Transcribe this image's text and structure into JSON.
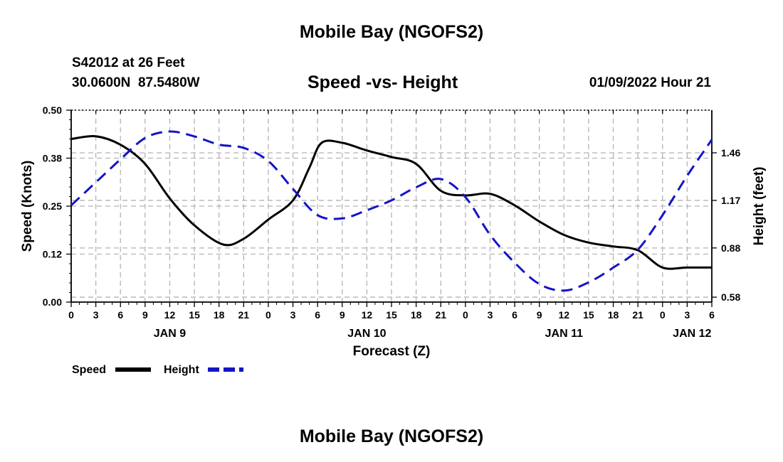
{
  "page": {
    "top_title": "Mobile Bay (NGOFS2)",
    "bottom_title": "Mobile Bay (NGOFS2)",
    "station": "S42012 at 26 Feet",
    "coords": "30.0600N  87.5480W",
    "subtitle": "Speed -vs- Height",
    "datetime": "01/09/2022 Hour 21"
  },
  "colors": {
    "speed": "#000000",
    "height": "#1414c8",
    "grid": "#b4b4b4"
  },
  "chart_data": {
    "type": "line",
    "xlabel": "Forecast (Z)",
    "ylabel_left": "Speed (Knots)",
    "ylabel_right": "Height (feet)",
    "xlim": [
      0,
      78
    ],
    "ylim_left": [
      0,
      0.5
    ],
    "ylim_right": [
      0.55,
      1.72
    ],
    "x_ticks": [
      0,
      3,
      6,
      9,
      12,
      15,
      18,
      21,
      24,
      27,
      30,
      33,
      36,
      39,
      42,
      45,
      48,
      51,
      54,
      57,
      60,
      63,
      66,
      69,
      72,
      75,
      78
    ],
    "x_tick_labels": [
      "0",
      "3",
      "6",
      "9",
      "12",
      "15",
      "18",
      "21",
      "0",
      "3",
      "6",
      "9",
      "12",
      "15",
      "18",
      "21",
      "0",
      "3",
      "6",
      "9",
      "12",
      "15",
      "18",
      "21",
      "0",
      "3",
      "6"
    ],
    "date_labels": [
      {
        "x": 12,
        "text": "JAN 9"
      },
      {
        "x": 36,
        "text": "JAN 10"
      },
      {
        "x": 60,
        "text": "JAN 11"
      },
      {
        "x": 75.6,
        "text": "JAN 12"
      }
    ],
    "y_left_ticks": [
      0.0,
      0.125,
      0.25,
      0.375,
      0.5
    ],
    "y_left_tick_labels": [
      "0.00",
      "0.12",
      "0.25",
      "0.38",
      "0.50"
    ],
    "y_right_ticks": [
      0.58,
      0.88,
      1.17,
      1.46
    ],
    "y_right_tick_labels": [
      "0.58",
      "0.88",
      "1.17",
      "1.46"
    ],
    "grid": true,
    "legend": [
      {
        "name": "Speed",
        "style": "solid"
      },
      {
        "name": "Height",
        "style": "dashed"
      }
    ],
    "series": [
      {
        "name": "Speed",
        "axis": "left",
        "x": [
          0,
          3,
          6,
          9,
          12,
          15,
          18.5,
          21,
          24,
          27,
          29,
          30.5,
          33,
          36,
          39,
          42,
          45,
          48,
          51,
          54,
          57,
          60,
          63,
          66,
          69,
          72,
          75,
          78
        ],
        "y": [
          0.425,
          0.432,
          0.41,
          0.36,
          0.27,
          0.2,
          0.15,
          0.165,
          0.215,
          0.265,
          0.35,
          0.415,
          0.415,
          0.395,
          0.378,
          0.36,
          0.29,
          0.278,
          0.282,
          0.252,
          0.21,
          0.175,
          0.155,
          0.145,
          0.135,
          0.09,
          0.09,
          0.09
        ]
      },
      {
        "name": "Height",
        "axis": "right",
        "x": [
          0,
          3,
          6,
          9,
          12,
          15,
          18,
          21,
          24,
          27,
          30,
          33,
          36,
          39,
          42,
          45,
          48,
          51,
          54,
          57,
          60,
          63,
          66,
          69,
          72,
          75,
          78
        ],
        "y": [
          1.14,
          1.28,
          1.42,
          1.55,
          1.59,
          1.56,
          1.51,
          1.49,
          1.41,
          1.24,
          1.08,
          1.06,
          1.11,
          1.17,
          1.25,
          1.3,
          1.19,
          0.96,
          0.79,
          0.66,
          0.62,
          0.67,
          0.76,
          0.87,
          1.08,
          1.32,
          1.54
        ]
      }
    ]
  }
}
